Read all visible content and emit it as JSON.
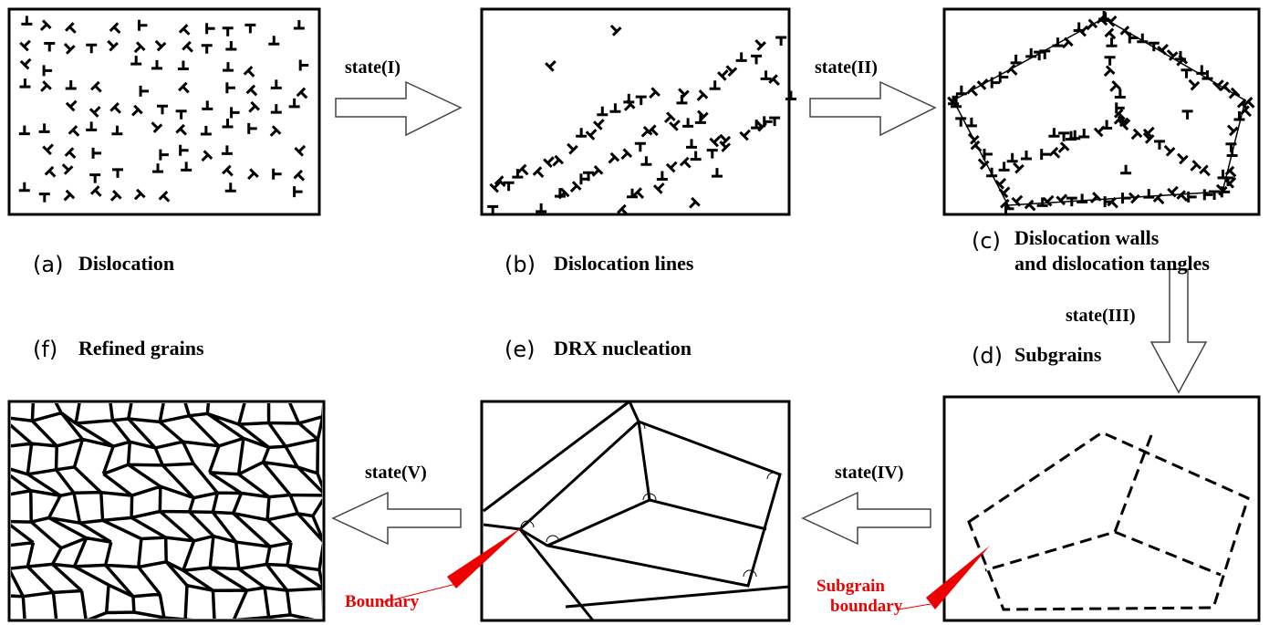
{
  "panels": [
    {
      "tag": "(a)",
      "caption": "Dislocation"
    },
    {
      "tag": "(b)",
      "caption": "Dislocation lines"
    },
    {
      "tag": "(c)",
      "caption": [
        "Dislocation walls",
        "and dislocation tangles"
      ]
    },
    {
      "tag": "(d)",
      "caption": "Subgrains"
    },
    {
      "tag": "(e)",
      "caption": "DRX nucleation"
    },
    {
      "tag": "(f)",
      "caption": "Refined grains"
    }
  ],
  "arrows": [
    "state(I)",
    "state(II)",
    "state(III)",
    "state(IV)",
    "state(V)"
  ],
  "annotations": {
    "boundary": "Boundary",
    "subgrain_boundary": [
      "Subgrain",
      "boundary"
    ]
  }
}
